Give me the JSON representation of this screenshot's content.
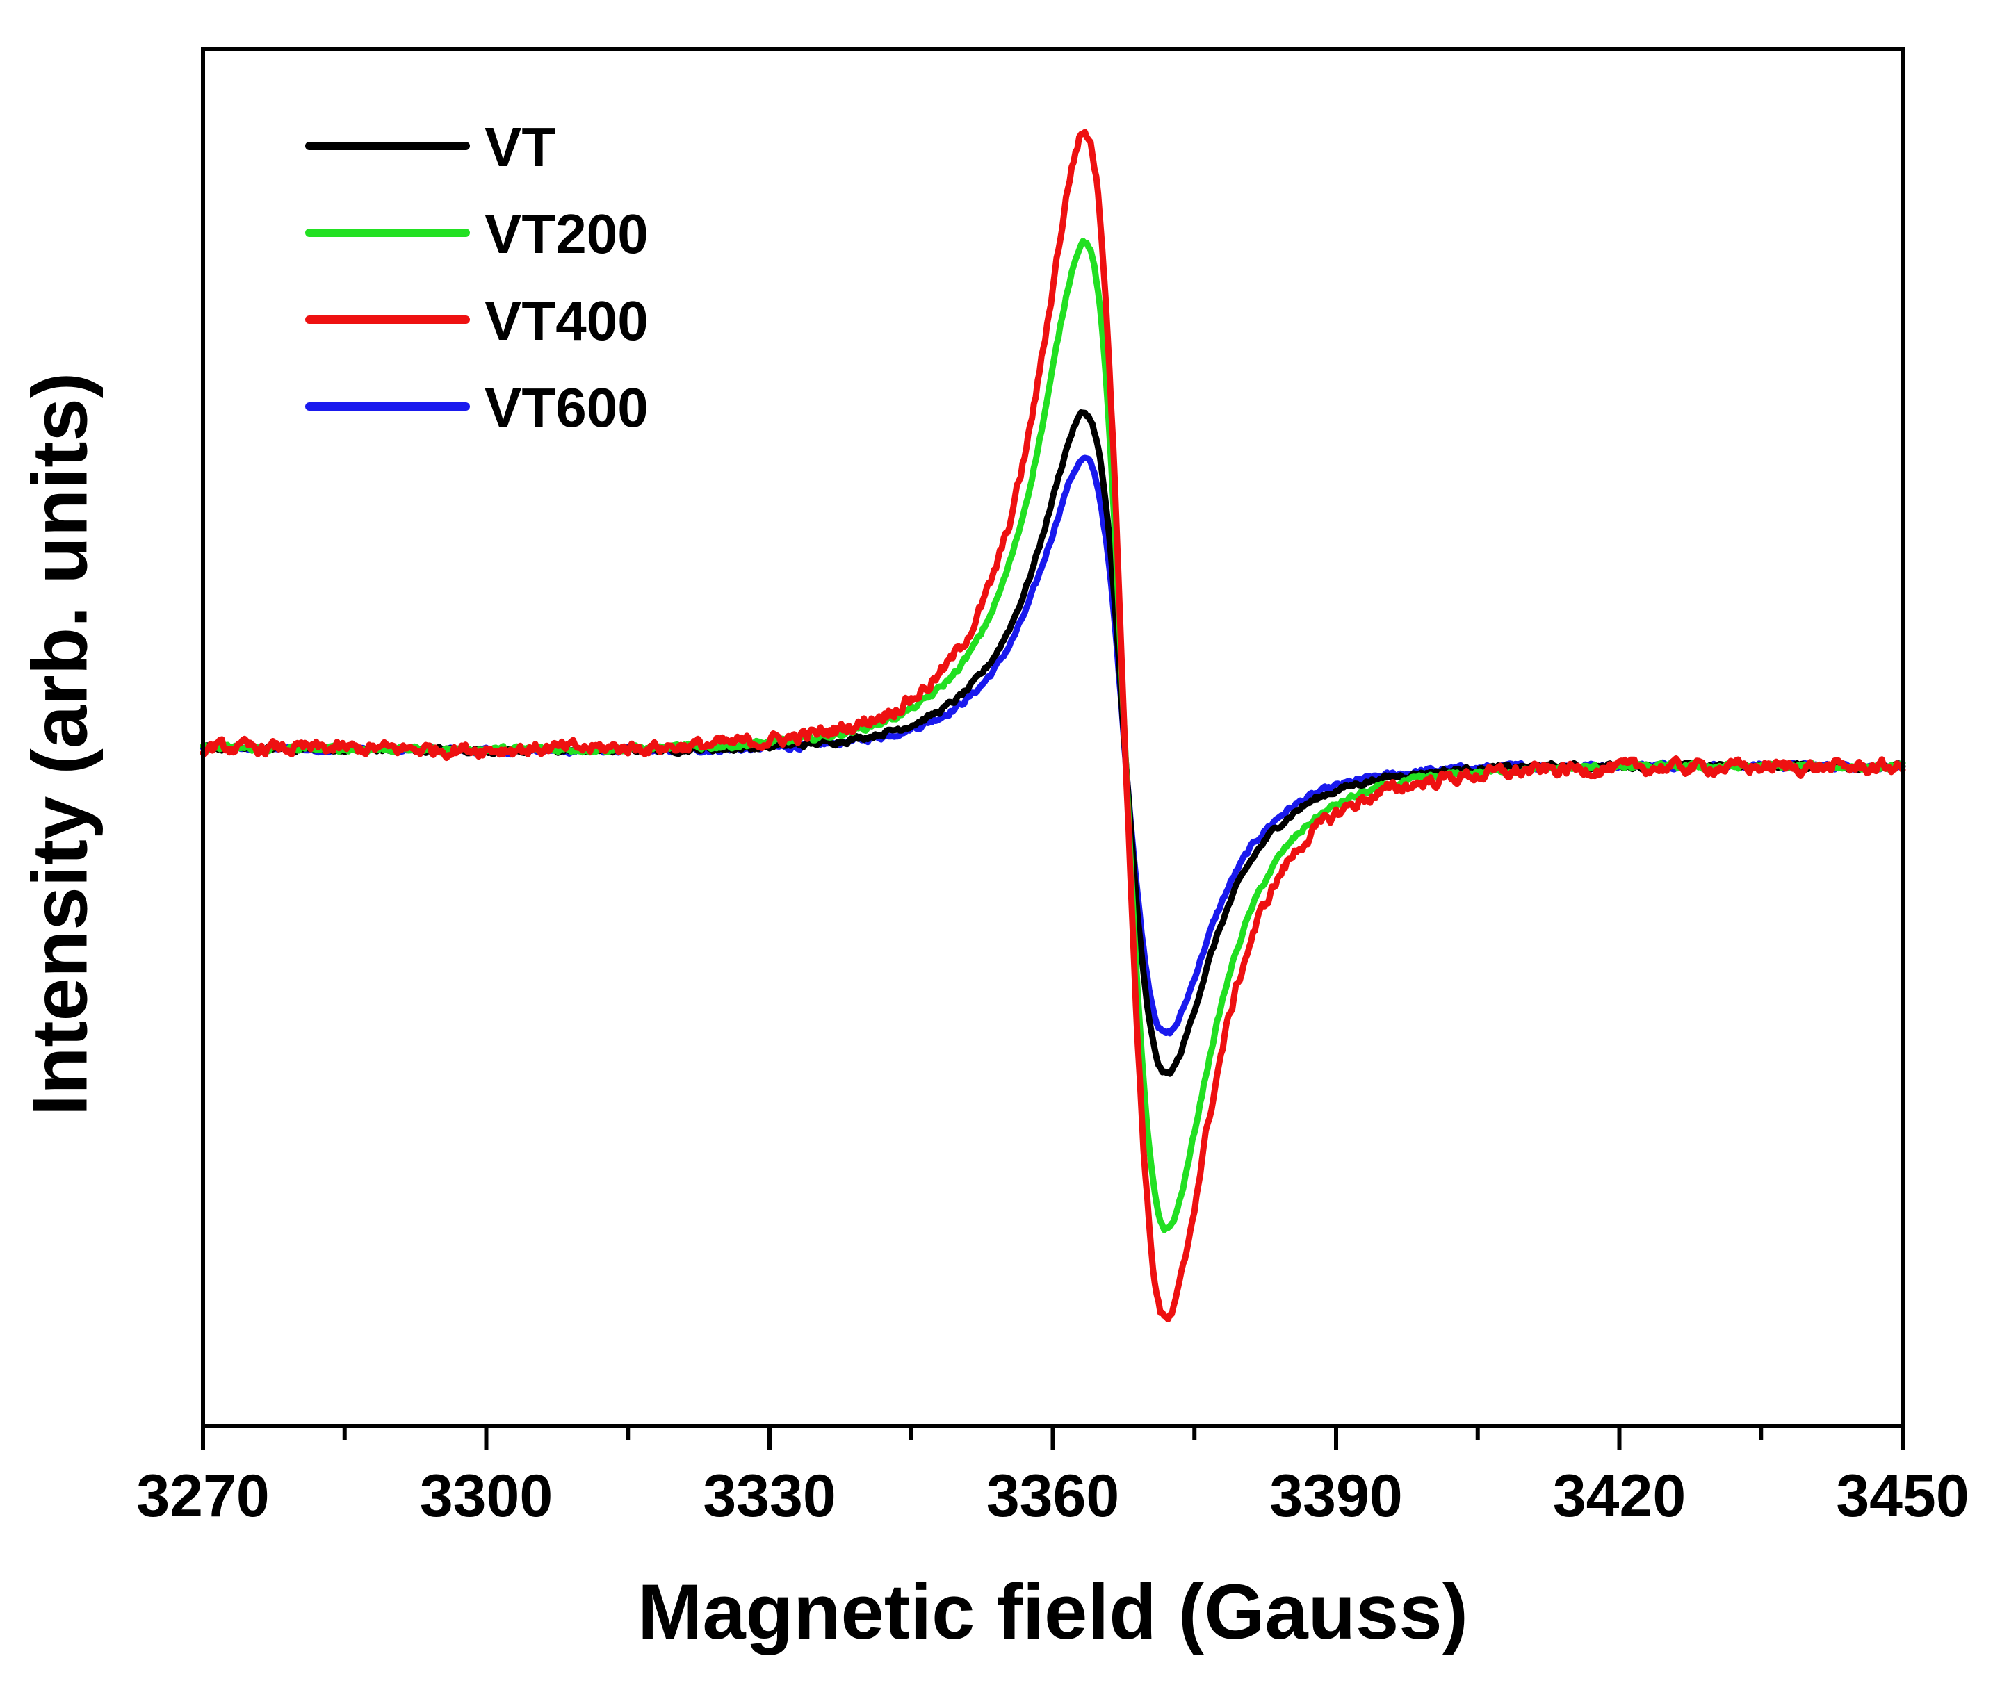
{
  "chart_data": {
    "type": "line",
    "title": "",
    "xlabel": "Magnetic field (Gauss)",
    "ylabel": "Intensity (arb. units)",
    "xlim": [
      3270,
      3450
    ],
    "ylim": [
      -1.18,
      1.22
    ],
    "x_ticks": [
      3270,
      3300,
      3330,
      3360,
      3390,
      3420,
      3450
    ],
    "x_tick_labels": [
      "3270",
      "3300",
      "3330",
      "3360",
      "3390",
      "3420",
      "3450"
    ],
    "x_minor_tick_step": 15,
    "y_ticks_shown": false,
    "grid": false,
    "legend_position": "top-left",
    "line_model": {
      "kind": "lorentzian-derivative",
      "center": 3367.7,
      "peak_field": 3363.5,
      "trough_field": 3372.2,
      "baseline_left": 0.0,
      "baseline_right": -0.03
    },
    "series": [
      {
        "name": "VT",
        "color": "#000000",
        "peak": 0.6,
        "trough": -0.55,
        "noise": 0.004
      },
      {
        "name": "VT200",
        "color": "#22e022",
        "peak": 0.9,
        "trough": -0.82,
        "noise": 0.004
      },
      {
        "name": "VT400",
        "color": "#ee1111",
        "peak": 1.09,
        "trough": -0.98,
        "noise": 0.009
      },
      {
        "name": "VT600",
        "color": "#1a1aee",
        "peak": 0.52,
        "trough": -0.48,
        "noise": 0.004
      }
    ],
    "draw_order": [
      "VT600",
      "VT",
      "VT200",
      "VT400"
    ]
  }
}
